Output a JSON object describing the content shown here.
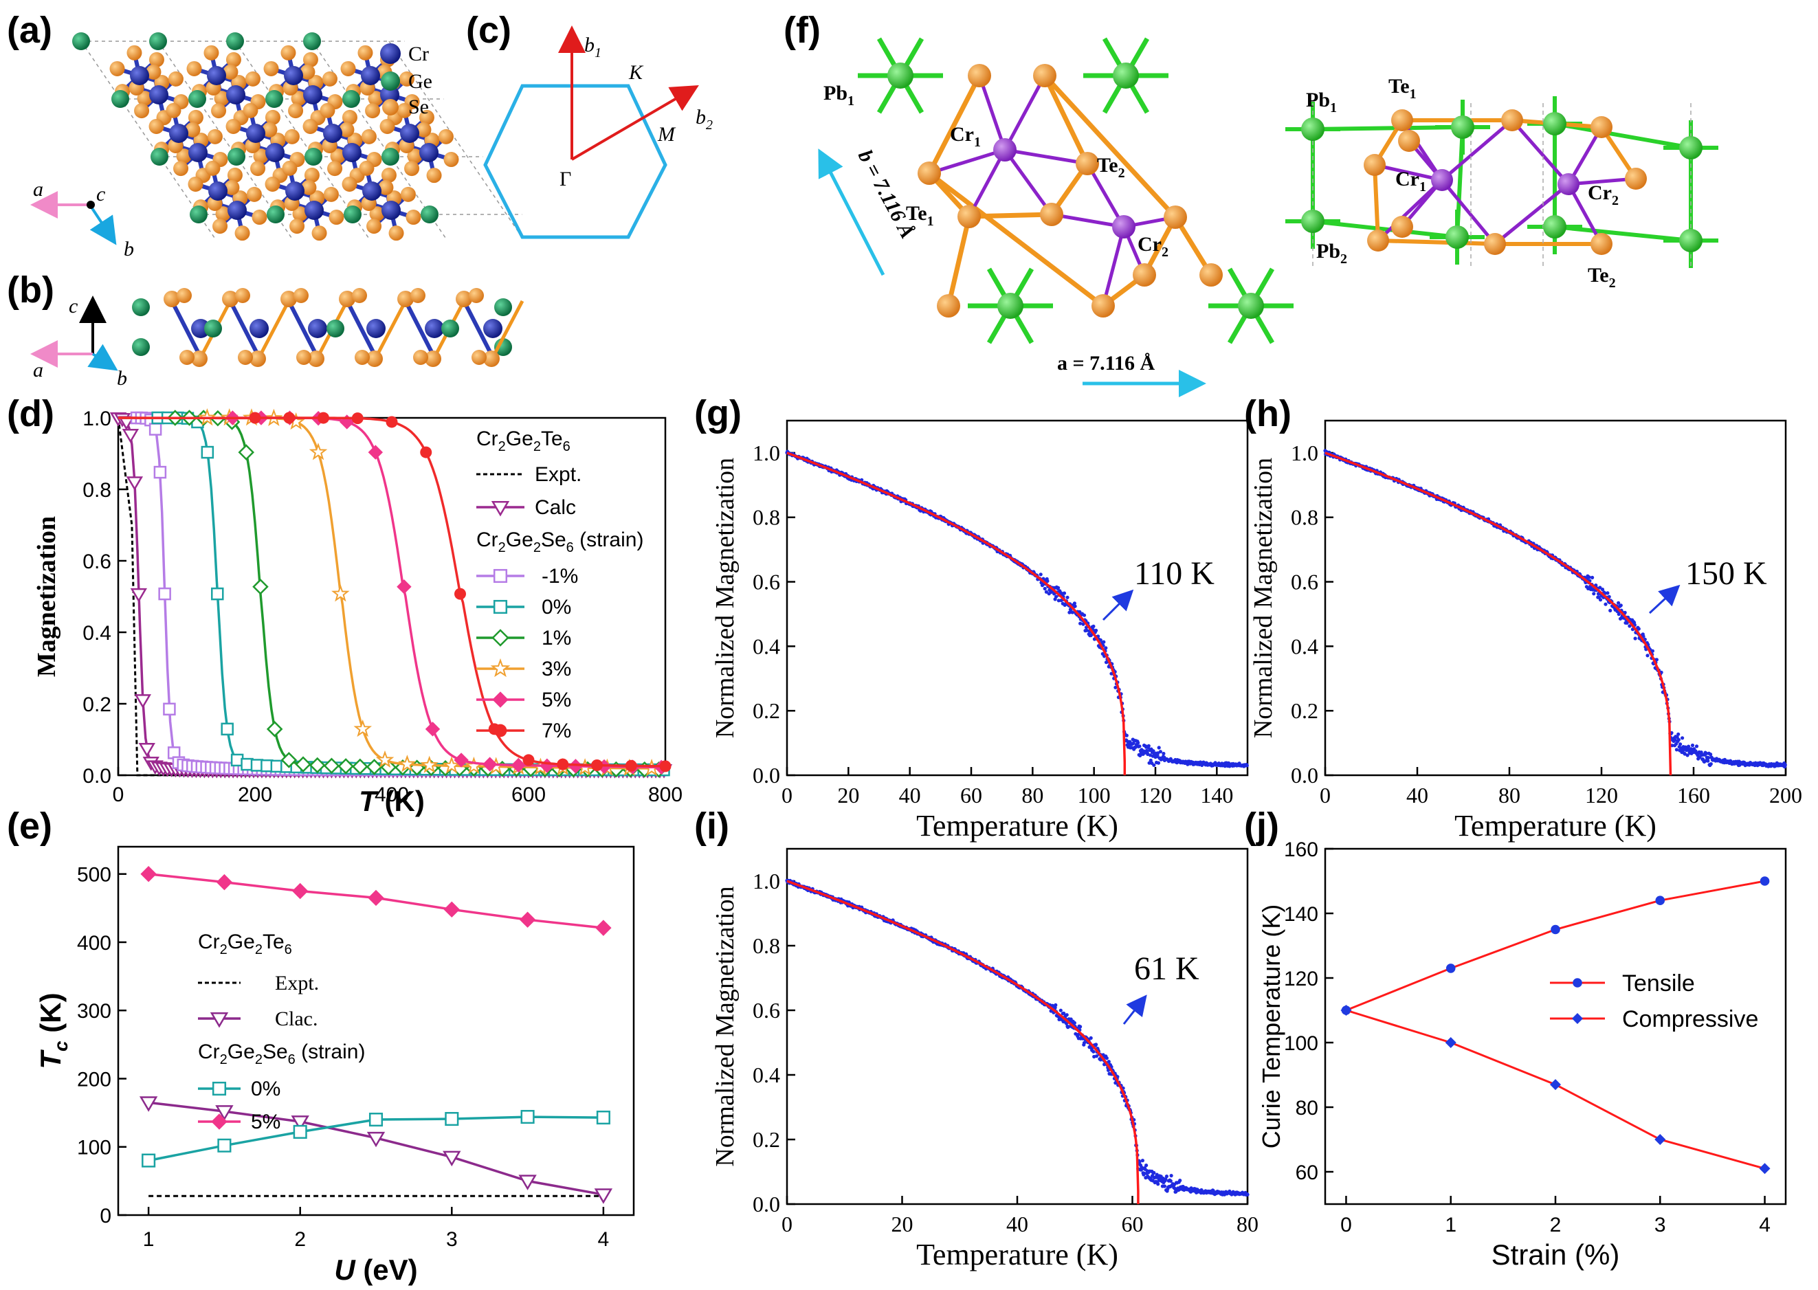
{
  "panels": {
    "a": "(a)",
    "b": "(b)",
    "c": "(c)",
    "d": "(d)",
    "e": "(e)",
    "f": "(f)",
    "g": "(g)",
    "h": "(h)",
    "i": "(i)",
    "j": "(j)"
  },
  "structure_a": {
    "legend": [
      "Cr",
      "Ge",
      "Se"
    ],
    "legend_colors": [
      "#1c2aa0",
      "#138a55",
      "#f0961e"
    ],
    "axes": [
      "a",
      "c",
      "b"
    ]
  },
  "structure_b": {
    "axes": [
      "c",
      "a",
      "b"
    ]
  },
  "bz_c": {
    "labels": [
      "b",
      "1",
      "b",
      "2",
      "K",
      "M",
      "Γ"
    ]
  },
  "structure_f": {
    "lattice_b": "b = 7.116 Å",
    "lattice_a": "a = 7.116 Å",
    "top_labels": [
      "Pb",
      "1",
      "Cr",
      "1",
      "Te",
      "2",
      "Te",
      "1",
      "Cr",
      "2"
    ],
    "side_labels": [
      "Pb",
      "1",
      "Te",
      "1",
      "Cr",
      "1",
      "Cr",
      "2",
      "Pb",
      "2",
      "Te",
      "2"
    ]
  },
  "chart_data": [
    {
      "id": "d",
      "type": "line",
      "xlabel_italic": "T",
      "xlabel_unit": " (K)",
      "ylabel": "Magnetization",
      "xlim": [
        0,
        800
      ],
      "ylim": [
        0,
        1.0
      ],
      "xticks": [
        "0",
        "200",
        "400",
        "600",
        "800"
      ],
      "yticks": [
        "0.0",
        "0.2",
        "0.4",
        "0.6",
        "0.8",
        "1.0"
      ],
      "legend_title_1": "Cr2Ge2Te6",
      "legend_title_2": "Cr2Ge2Se6 (strain)",
      "series": [
        {
          "name": "Expt.",
          "color": "#000000",
          "Tc": 25
        },
        {
          "name": "Calc",
          "color": "#9b2a8f",
          "Tc": 30
        },
        {
          "name": "-1%",
          "color": "#b57ce6",
          "Tc": 68
        },
        {
          "name": "0%",
          "color": "#1aa3a3",
          "Tc": 145
        },
        {
          "name": "1%",
          "color": "#1f9a2d",
          "Tc": 208
        },
        {
          "name": "3%",
          "color": "#f0a030",
          "Tc": 325
        },
        {
          "name": "5%",
          "color": "#f0358a",
          "Tc": 418
        },
        {
          "name": "7%",
          "color": "#f02a2a",
          "Tc": 500
        }
      ]
    },
    {
      "id": "e",
      "type": "line",
      "xlabel_italic": "U",
      "xlabel_unit": " (eV)",
      "ylabel_italic": "T",
      "ylabel_sub": "c",
      "ylabel_unit": " (K)",
      "xlim": [
        0.8,
        4.2
      ],
      "ylim": [
        0,
        540
      ],
      "xticks": [
        "1",
        "2",
        "3",
        "4"
      ],
      "yticks": [
        "0",
        "100",
        "200",
        "300",
        "400",
        "500"
      ],
      "legend_title_1": "Cr2Ge2Te6",
      "legend_title_2": "Cr2Ge2Se6 (strain)",
      "series": [
        {
          "name": "Expt.",
          "color": "#000000",
          "x": [
            1,
            4
          ],
          "y": [
            28,
            28
          ]
        },
        {
          "name": "Clac.",
          "color": "#8c2a8c",
          "x": [
            1,
            1.5,
            2,
            2.5,
            3,
            3.5,
            4
          ],
          "y": [
            165,
            152,
            137,
            113,
            85,
            50,
            30
          ]
        },
        {
          "name": "0%",
          "color": "#1aa3a3",
          "x": [
            1,
            1.5,
            2,
            2.5,
            3,
            3.5,
            4
          ],
          "y": [
            80,
            102,
            122,
            140,
            141,
            144,
            143
          ]
        },
        {
          "name": "5%",
          "color": "#f0358a",
          "x": [
            1,
            1.5,
            2,
            2.5,
            3,
            3.5,
            4
          ],
          "y": [
            500,
            488,
            475,
            465,
            448,
            433,
            421
          ]
        }
      ]
    },
    {
      "id": "g",
      "type": "scatter",
      "xlabel": "Temperature (K)",
      "ylabel": "Normalized Magnetization",
      "xlim": [
        0,
        150
      ],
      "ylim": [
        0,
        1.1
      ],
      "xticks": [
        "0",
        "20",
        "40",
        "60",
        "80",
        "100",
        "120",
        "140"
      ],
      "yticks": [
        "0.0",
        "0.2",
        "0.4",
        "0.6",
        "0.8",
        "1.0"
      ],
      "Tc": 110,
      "annotation": "110 K"
    },
    {
      "id": "h",
      "type": "scatter",
      "xlabel": "Temperature (K)",
      "ylabel": "Normalized Magnetization",
      "xlim": [
        0,
        200
      ],
      "ylim": [
        0,
        1.1
      ],
      "xticks": [
        "0",
        "40",
        "80",
        "120",
        "160",
        "200"
      ],
      "yticks": [
        "0.0",
        "0.2",
        "0.4",
        "0.6",
        "0.8",
        "1.0"
      ],
      "Tc": 150,
      "annotation": "150 K"
    },
    {
      "id": "i",
      "type": "scatter",
      "xlabel": "Temperature (K)",
      "ylabel": "Normalized Magnetization",
      "xlim": [
        0,
        80
      ],
      "ylim": [
        0,
        1.1
      ],
      "xticks": [
        "0",
        "20",
        "40",
        "60",
        "80"
      ],
      "yticks": [
        "0.0",
        "0.2",
        "0.4",
        "0.6",
        "0.8",
        "1.0"
      ],
      "Tc": 61,
      "annotation": "61 K"
    },
    {
      "id": "j",
      "type": "line",
      "xlabel": "Strain (%)",
      "ylabel": "Curie Temperature (K)",
      "xlim": [
        -0.2,
        4.2
      ],
      "ylim": [
        50,
        160
      ],
      "xticks": [
        "0",
        "1",
        "2",
        "3",
        "4"
      ],
      "yticks": [
        "60",
        "80",
        "100",
        "120",
        "140",
        "160"
      ],
      "series": [
        {
          "name": "Tensile",
          "line_color": "#ff1a1a",
          "marker_color": "#1f3ae0",
          "x": [
            0,
            1,
            2,
            3,
            4
          ],
          "y": [
            110,
            123,
            135,
            144,
            150
          ]
        },
        {
          "name": "Compressive",
          "line_color": "#ff1a1a",
          "marker_color": "#1f3ae0",
          "x": [
            0,
            1,
            2,
            3,
            4
          ],
          "y": [
            110,
            100,
            87,
            70,
            61
          ]
        }
      ]
    }
  ]
}
